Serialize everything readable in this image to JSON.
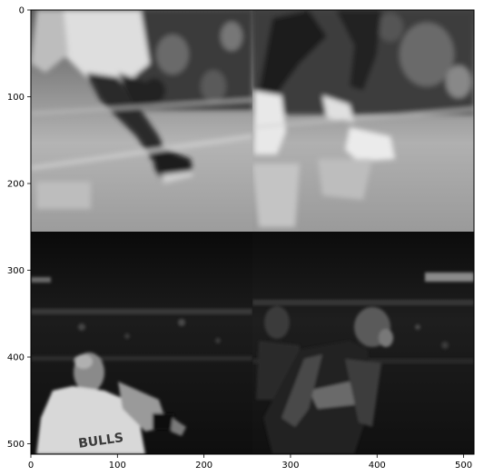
{
  "figure": {
    "background": "#ffffff",
    "image_mode": "grayscale",
    "panels": [
      {
        "position": "top-left",
        "subject": "basketball player legs and sneakers on hardwood court",
        "tone": "light"
      },
      {
        "position": "top-right",
        "subject": "basketball player legs in white sneakers on hardwood court",
        "tone": "light"
      },
      {
        "position": "bottom-left",
        "subject": "player in white Bulls jersey dribbling, dark arena crowd",
        "tone": "dark"
      },
      {
        "position": "bottom-right",
        "subject": "two players in dark jerseys, dark arena crowd",
        "tone": "dark"
      }
    ],
    "panel_text": [
      "BULLS"
    ]
  },
  "axes": {
    "x_ticks": [
      "0",
      "100",
      "200",
      "300",
      "400",
      "500"
    ],
    "y_ticks": [
      "0",
      "100",
      "200",
      "300",
      "400",
      "500"
    ],
    "x_range": [
      0,
      512
    ],
    "y_range": [
      0,
      512
    ],
    "y_inverted": true,
    "grid": false
  }
}
